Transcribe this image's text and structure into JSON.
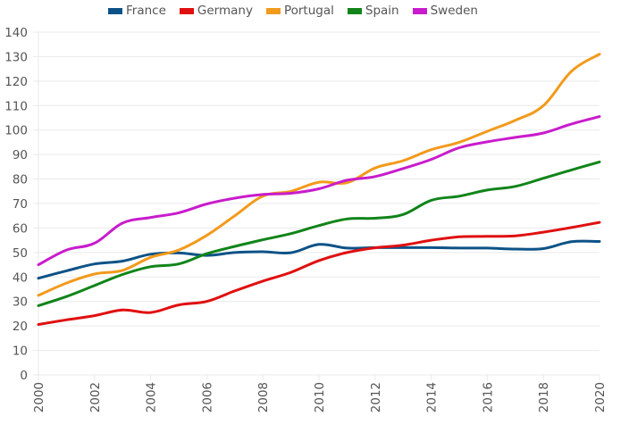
{
  "chart_data": {
    "type": "line",
    "title": "",
    "xlabel": "",
    "ylabel": "",
    "legend_position": "top",
    "grid": true,
    "ylim": [
      0,
      140
    ],
    "xlim": [
      2000,
      2020
    ],
    "y_ticks": [
      "0",
      "10",
      "20",
      "30",
      "40",
      "50",
      "60",
      "70",
      "80",
      "90",
      "100",
      "110",
      "120",
      "130",
      "140"
    ],
    "x_ticks": [
      "2000",
      "2002",
      "2004",
      "2006",
      "2008",
      "2010",
      "2012",
      "2014",
      "2016",
      "2018",
      "2020"
    ],
    "x": [
      2000,
      2001,
      2002,
      2003,
      2004,
      2005,
      2006,
      2007,
      2008,
      2009,
      2010,
      2011,
      2012,
      2013,
      2014,
      2015,
      2016,
      2017,
      2018,
      2019,
      2020
    ],
    "series": [
      {
        "name": "France",
        "color": "#0d5286",
        "values": [
          39.5,
          42.5,
          45.3,
          46.5,
          49.3,
          49.8,
          48.8,
          50.0,
          50.3,
          49.9,
          53.3,
          51.8,
          52.0,
          52.0,
          52.0,
          51.8,
          51.8,
          51.4,
          51.6,
          54.4,
          54.5
        ]
      },
      {
        "name": "Germany",
        "color": "#e01010",
        "values": [
          20.6,
          22.5,
          24.2,
          26.5,
          25.5,
          28.6,
          30.0,
          34.3,
          38.3,
          41.9,
          46.7,
          50.0,
          51.9,
          53.0,
          55.0,
          56.4,
          56.6,
          56.8,
          58.3,
          60.2,
          62.3
        ]
      },
      {
        "name": "Portugal",
        "color": "#f29a1c",
        "values": [
          32.5,
          37.5,
          41.2,
          42.7,
          48.0,
          51.0,
          57.0,
          65.0,
          73.0,
          75.0,
          78.7,
          78.5,
          84.5,
          87.5,
          92.0,
          95.0,
          99.5,
          104.0,
          110.0,
          124.0,
          131.0
        ]
      },
      {
        "name": "Spain",
        "color": "#11841a",
        "values": [
          28.3,
          32.0,
          36.5,
          41.0,
          44.2,
          45.3,
          49.5,
          52.5,
          55.2,
          57.7,
          61.0,
          63.7,
          64.0,
          65.5,
          71.3,
          73.0,
          75.5,
          77.0,
          80.3,
          83.7,
          87.0
        ]
      },
      {
        "name": "Sweden",
        "color": "#c81ccc",
        "values": [
          45.0,
          51.0,
          53.8,
          62.0,
          64.3,
          66.2,
          69.8,
          72.2,
          73.7,
          74.2,
          76.0,
          79.5,
          81.0,
          84.3,
          88.0,
          92.8,
          95.2,
          97.0,
          98.8,
          102.5,
          105.5
        ]
      }
    ]
  }
}
